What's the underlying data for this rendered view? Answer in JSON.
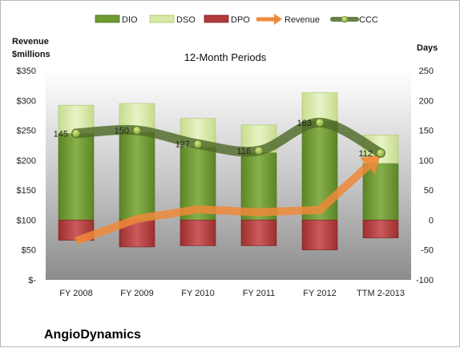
{
  "chart_data": {
    "type": "bar",
    "title": "",
    "subtitle": "12-Month Periods",
    "company": "AngioDynamics",
    "categories": [
      "FY 2008",
      "FY 2009",
      "FY 2010",
      "FY 2011",
      "FY 2012",
      "TTM 2-2013"
    ],
    "left_axis": {
      "title_line1": "Revenue",
      "title_line2": "$millions",
      "ylim": [
        0,
        350
      ],
      "ticks": [
        0,
        50,
        100,
        150,
        200,
        250,
        300,
        350
      ],
      "tick_labels": [
        "$-",
        "$50",
        "$100",
        "$150",
        "$200",
        "$250",
        "$300",
        "$350"
      ]
    },
    "right_axis": {
      "title": "Days",
      "ylim": [
        -100,
        250
      ],
      "ticks": [
        -100,
        -50,
        0,
        50,
        100,
        150,
        200,
        250
      ],
      "tick_labels": [
        "-100",
        "-50",
        "0",
        "50",
        "100",
        "150",
        "200",
        "250"
      ]
    },
    "series": [
      {
        "name": "DIO",
        "axis": "right",
        "kind": "stacked-bar",
        "color": "#6e9a32",
        "values": [
          145,
          147,
          122,
          113,
          166,
          95
        ]
      },
      {
        "name": "DSO",
        "axis": "right",
        "kind": "stacked-bar",
        "color": "#d6e8a6",
        "values": [
          47,
          48,
          48,
          46,
          47,
          47
        ]
      },
      {
        "name": "DPO",
        "axis": "right",
        "kind": "negative-bar",
        "color": "#b23a3a",
        "values": [
          -34,
          -45,
          -43,
          -43,
          -50,
          -30
        ]
      },
      {
        "name": "Revenue",
        "axis": "left",
        "kind": "arrow-line",
        "color": "#ee8a3a",
        "values": [
          65,
          102,
          118,
          113,
          117,
          210
        ]
      },
      {
        "name": "CCC",
        "axis": "right",
        "kind": "line-markers",
        "color": "#4f6a28",
        "values": [
          145,
          150,
          127,
          116,
          163,
          112
        ]
      }
    ],
    "data_labels": [
      "145",
      "150",
      "127",
      "116",
      "163",
      "112"
    ],
    "legend": [
      "DIO",
      "DSO",
      "DPO",
      "Revenue",
      "CCC"
    ],
    "legend_position": "top",
    "grid": false
  }
}
